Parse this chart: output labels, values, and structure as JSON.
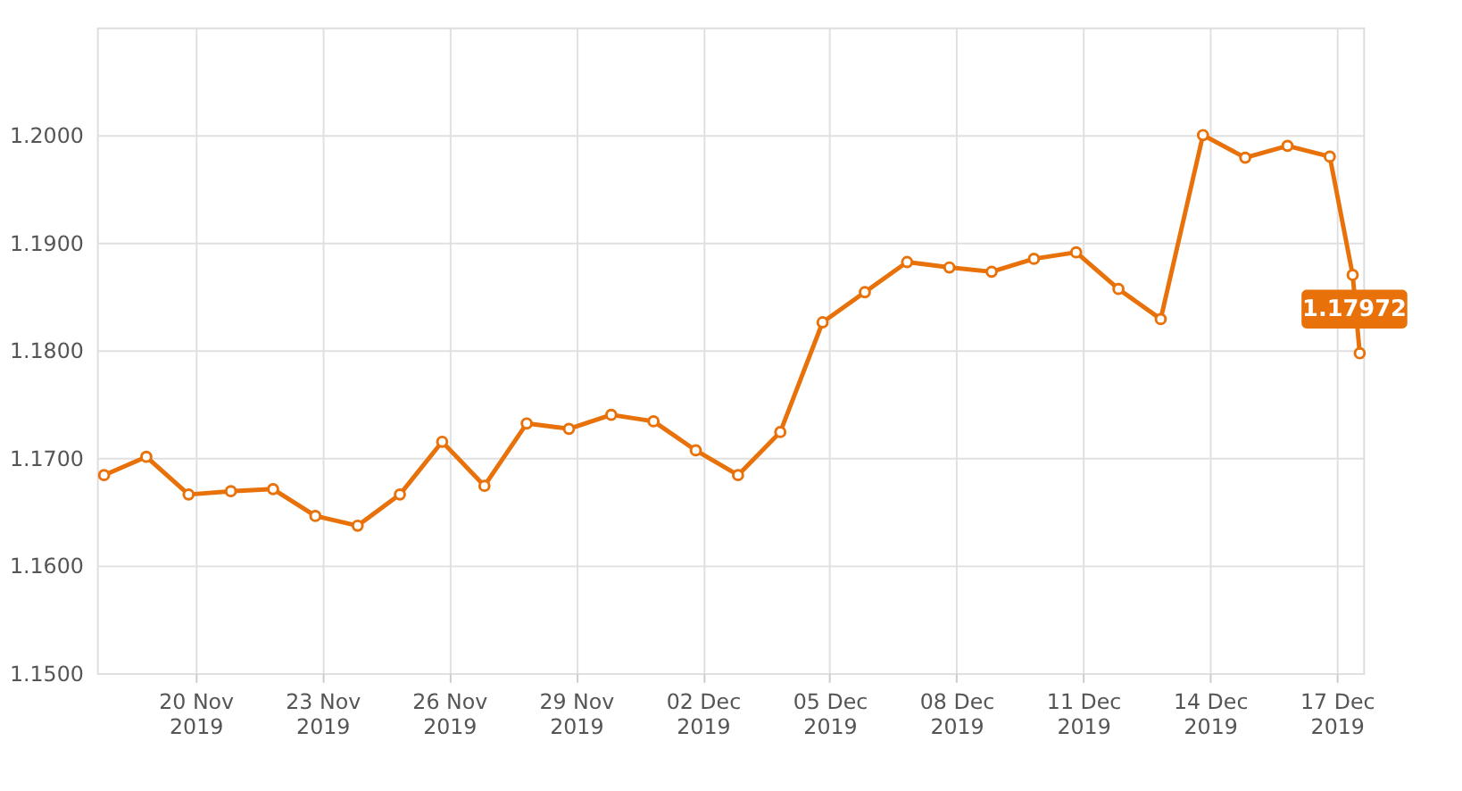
{
  "chart_data": {
    "type": "line",
    "x": [
      "2019-11-17T20:00",
      "2019-11-18T20:00",
      "2019-11-19T20:00",
      "2019-11-20T20:00",
      "2019-11-21T20:00",
      "2019-11-22T20:00",
      "2019-11-23T20:00",
      "2019-11-24T20:00",
      "2019-11-25T20:00",
      "2019-11-26T20:00",
      "2019-11-27T20:00",
      "2019-11-28T20:00",
      "2019-11-29T20:00",
      "2019-11-30T20:00",
      "2019-12-01T20:00",
      "2019-12-02T20:00",
      "2019-12-03T20:00",
      "2019-12-04T20:00",
      "2019-12-05T20:00",
      "2019-12-06T20:00",
      "2019-12-07T20:00",
      "2019-12-08T20:00",
      "2019-12-09T20:00",
      "2019-12-10T20:00",
      "2019-12-11T20:00",
      "2019-12-12T20:00",
      "2019-12-13T20:00",
      "2019-12-14T20:00",
      "2019-12-15T20:00",
      "2019-12-16T20:00",
      "2019-12-17T09:00",
      "2019-12-17T13:00"
    ],
    "series": [
      {
        "color": "#e8710a",
        "values": [
          1.1684,
          1.1701,
          1.1666,
          1.1669,
          1.1671,
          1.1646,
          1.1637,
          1.1666,
          1.1715,
          1.1674,
          1.1732,
          1.1727,
          1.174,
          1.1734,
          1.1707,
          1.1684,
          1.1724,
          1.1826,
          1.1854,
          1.1882,
          1.1877,
          1.1873,
          1.1885,
          1.1891,
          1.1857,
          1.1829,
          1.2,
          1.1979,
          1.199,
          1.198,
          1.187,
          1.17972
        ]
      }
    ],
    "xlim": [
      "2019-11-17T16:00",
      "2019-12-17T15:00"
    ],
    "xticks": [
      {
        "value": "2019-11-20",
        "label": "20 Nov 2019"
      },
      {
        "value": "2019-11-23",
        "label": "23 Nov 2019"
      },
      {
        "value": "2019-11-26",
        "label": "26 Nov 2019"
      },
      {
        "value": "2019-11-29",
        "label": "29 Nov 2019"
      },
      {
        "value": "2019-12-02",
        "label": "02 Dec 2019"
      },
      {
        "value": "2019-12-05",
        "label": "05 Dec 2019"
      },
      {
        "value": "2019-12-08",
        "label": "08 Dec 2019"
      },
      {
        "value": "2019-12-11",
        "label": "11 Dec 2019"
      },
      {
        "value": "2019-12-14",
        "label": "14 Dec 2019"
      },
      {
        "value": "2019-12-17",
        "label": "17 Dec 2019"
      }
    ],
    "ylim": [
      1.15,
      1.21
    ],
    "yticks": [
      {
        "value": 1.15,
        "label": "1.1500"
      },
      {
        "value": 1.16,
        "label": "1.1600"
      },
      {
        "value": 1.17,
        "label": "1.1700"
      },
      {
        "value": 1.18,
        "label": "1.1800"
      },
      {
        "value": 1.19,
        "label": "1.1900"
      },
      {
        "value": 1.2,
        "label": "1.2000"
      }
    ],
    "grid": true,
    "marker": "circle",
    "line_style": "solid",
    "annotations": [
      {
        "text": "1.17972",
        "x": "2019-12-17T13:00",
        "y": 1.17972
      }
    ]
  }
}
